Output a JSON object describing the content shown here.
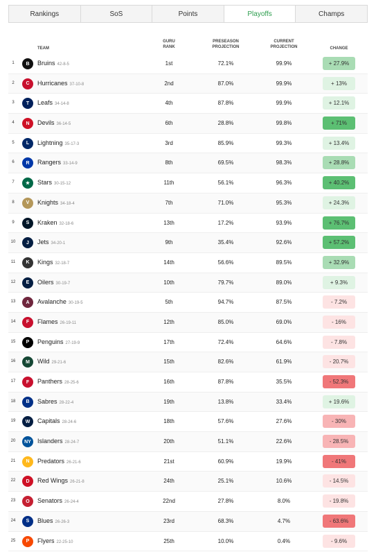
{
  "tabs": [
    {
      "label": "Rankings",
      "active": false
    },
    {
      "label": "SoS",
      "active": false
    },
    {
      "label": "Points",
      "active": false
    },
    {
      "label": "Playoffs",
      "active": true
    },
    {
      "label": "Champs",
      "active": false
    }
  ],
  "header": {
    "team": "TEAM",
    "guru_rank": "GURU RANK",
    "preseason": "PRESEASON PROJECTION",
    "current": "CURRENT PROJECTION",
    "change": "CHANGE"
  },
  "colors": {
    "active_tab": "#2e9e4f",
    "positive_strong": "#5cbf73",
    "positive_weak": "#dff3e3",
    "negative_strong": "#f07779",
    "negative_weak": "#fde3e3"
  },
  "rows": [
    {
      "rank": "1",
      "team": "Bruins",
      "record": "42-8-5",
      "guru": "1st",
      "pre": "72.1%",
      "cur": "99.9%",
      "change": "+ 27.9%",
      "chg_val": 27.9,
      "logo_color": "#111",
      "icon": "bruins-logo-icon",
      "abbr": "B"
    },
    {
      "rank": "2",
      "team": "Hurricanes",
      "record": "37-10-8",
      "guru": "2nd",
      "pre": "87.0%",
      "cur": "99.9%",
      "change": "+ 13%",
      "chg_val": 13,
      "logo_color": "#c8102e",
      "icon": "hurricanes-logo-icon",
      "abbr": "C"
    },
    {
      "rank": "3",
      "team": "Leafs",
      "record": "34-14-8",
      "guru": "4th",
      "pre": "87.8%",
      "cur": "99.9%",
      "change": "+ 12.1%",
      "chg_val": 12.1,
      "logo_color": "#00205b",
      "icon": "leafs-logo-icon",
      "abbr": "T"
    },
    {
      "rank": "4",
      "team": "Devils",
      "record": "36-14-5",
      "guru": "6th",
      "pre": "28.8%",
      "cur": "99.8%",
      "change": "+ 71%",
      "chg_val": 71,
      "logo_color": "#ce1126",
      "icon": "devils-logo-icon",
      "abbr": "N"
    },
    {
      "rank": "5",
      "team": "Lightning",
      "record": "35-17-3",
      "guru": "3rd",
      "pre": "85.9%",
      "cur": "99.3%",
      "change": "+ 13.4%",
      "chg_val": 13.4,
      "logo_color": "#002868",
      "icon": "lightning-logo-icon",
      "abbr": "L"
    },
    {
      "rank": "6",
      "team": "Rangers",
      "record": "33-14-9",
      "guru": "8th",
      "pre": "69.5%",
      "cur": "98.3%",
      "change": "+ 28.8%",
      "chg_val": 28.8,
      "logo_color": "#0038a8",
      "icon": "rangers-logo-icon",
      "abbr": "R"
    },
    {
      "rank": "7",
      "team": "Stars",
      "record": "30-15-12",
      "guru": "11th",
      "pre": "56.1%",
      "cur": "96.3%",
      "change": "+ 40.2%",
      "chg_val": 40.2,
      "logo_color": "#006847",
      "icon": "stars-logo-icon",
      "abbr": "★"
    },
    {
      "rank": "8",
      "team": "Knights",
      "record": "34-18-4",
      "guru": "7th",
      "pre": "71.0%",
      "cur": "95.3%",
      "change": "+ 24.3%",
      "chg_val": 24.3,
      "logo_color": "#b4975a",
      "icon": "knights-logo-icon",
      "abbr": "V"
    },
    {
      "rank": "9",
      "team": "Kraken",
      "record": "32-18-6",
      "guru": "13th",
      "pre": "17.2%",
      "cur": "93.9%",
      "change": "+ 76.7%",
      "chg_val": 76.7,
      "logo_color": "#001628",
      "icon": "kraken-logo-icon",
      "abbr": "S"
    },
    {
      "rank": "10",
      "team": "Jets",
      "record": "34-20-1",
      "guru": "9th",
      "pre": "35.4%",
      "cur": "92.6%",
      "change": "+ 57.2%",
      "chg_val": 57.2,
      "logo_color": "#041e42",
      "icon": "jets-logo-icon",
      "abbr": "J"
    },
    {
      "rank": "11",
      "team": "Kings",
      "record": "32-18-7",
      "guru": "14th",
      "pre": "56.6%",
      "cur": "89.5%",
      "change": "+ 32.9%",
      "chg_val": 32.9,
      "logo_color": "#333",
      "icon": "kings-logo-icon",
      "abbr": "K"
    },
    {
      "rank": "12",
      "team": "Oilers",
      "record": "30-19-7",
      "guru": "10th",
      "pre": "79.7%",
      "cur": "89.0%",
      "change": "+ 9.3%",
      "chg_val": 9.3,
      "logo_color": "#041e42",
      "icon": "oilers-logo-icon",
      "abbr": "E"
    },
    {
      "rank": "13",
      "team": "Avalanche",
      "record": "30-19-5",
      "guru": "5th",
      "pre": "94.7%",
      "cur": "87.5%",
      "change": "- 7.2%",
      "chg_val": -7.2,
      "logo_color": "#6f263d",
      "icon": "avalanche-logo-icon",
      "abbr": "A"
    },
    {
      "rank": "14",
      "team": "Flames",
      "record": "26-19-11",
      "guru": "12th",
      "pre": "85.0%",
      "cur": "69.0%",
      "change": "- 16%",
      "chg_val": -16,
      "logo_color": "#c8102e",
      "icon": "flames-logo-icon",
      "abbr": "F"
    },
    {
      "rank": "15",
      "team": "Penguins",
      "record": "27-19-9",
      "guru": "17th",
      "pre": "72.4%",
      "cur": "64.6%",
      "change": "- 7.8%",
      "chg_val": -7.8,
      "logo_color": "#000",
      "icon": "penguins-logo-icon",
      "abbr": "P"
    },
    {
      "rank": "16",
      "team": "Wild",
      "record": "29-21-6",
      "guru": "15th",
      "pre": "82.6%",
      "cur": "61.9%",
      "change": "- 20.7%",
      "chg_val": -20.7,
      "logo_color": "#154734",
      "icon": "wild-logo-icon",
      "abbr": "M"
    },
    {
      "rank": "17",
      "team": "Panthers",
      "record": "28-25-6",
      "guru": "16th",
      "pre": "87.8%",
      "cur": "35.5%",
      "change": "- 52.3%",
      "chg_val": -52.3,
      "logo_color": "#c8102e",
      "icon": "panthers-logo-icon",
      "abbr": "F"
    },
    {
      "rank": "18",
      "team": "Sabres",
      "record": "28-22-4",
      "guru": "19th",
      "pre": "13.8%",
      "cur": "33.4%",
      "change": "+ 19.6%",
      "chg_val": 19.6,
      "logo_color": "#003087",
      "icon": "sabres-logo-icon",
      "abbr": "B"
    },
    {
      "rank": "19",
      "team": "Capitals",
      "record": "28-24-6",
      "guru": "18th",
      "pre": "57.6%",
      "cur": "27.6%",
      "change": "- 30%",
      "chg_val": -30,
      "logo_color": "#041e42",
      "icon": "capitals-logo-icon",
      "abbr": "W"
    },
    {
      "rank": "20",
      "team": "Islanders",
      "record": "28-24-7",
      "guru": "20th",
      "pre": "51.1%",
      "cur": "22.6%",
      "change": "- 28.5%",
      "chg_val": -28.5,
      "logo_color": "#00539b",
      "icon": "islanders-logo-icon",
      "abbr": "NY"
    },
    {
      "rank": "21",
      "team": "Predators",
      "record": "26-21-6",
      "guru": "21st",
      "pre": "60.9%",
      "cur": "19.9%",
      "change": "- 41%",
      "chg_val": -41,
      "logo_color": "#ffb81c",
      "icon": "predators-logo-icon",
      "abbr": "N"
    },
    {
      "rank": "22",
      "team": "Red Wings",
      "record": "26-21-8",
      "guru": "24th",
      "pre": "25.1%",
      "cur": "10.6%",
      "change": "- 14.5%",
      "chg_val": -14.5,
      "logo_color": "#ce1126",
      "icon": "red-wings-logo-icon",
      "abbr": "D"
    },
    {
      "rank": "23",
      "team": "Senators",
      "record": "26-24-4",
      "guru": "22nd",
      "pre": "27.8%",
      "cur": "8.0%",
      "change": "- 19.8%",
      "chg_val": -19.8,
      "logo_color": "#c52032",
      "icon": "senators-logo-icon",
      "abbr": "O"
    },
    {
      "rank": "24",
      "team": "Blues",
      "record": "26-26-3",
      "guru": "23rd",
      "pre": "68.3%",
      "cur": "4.7%",
      "change": "- 63.6%",
      "chg_val": -63.6,
      "logo_color": "#002f87",
      "icon": "blues-logo-icon",
      "abbr": "S"
    },
    {
      "rank": "25",
      "team": "Flyers",
      "record": "22-25-10",
      "guru": "25th",
      "pre": "10.0%",
      "cur": "0.4%",
      "change": "- 9.6%",
      "chg_val": -9.6,
      "logo_color": "#f74902",
      "icon": "flyers-logo-icon",
      "abbr": "P"
    }
  ]
}
